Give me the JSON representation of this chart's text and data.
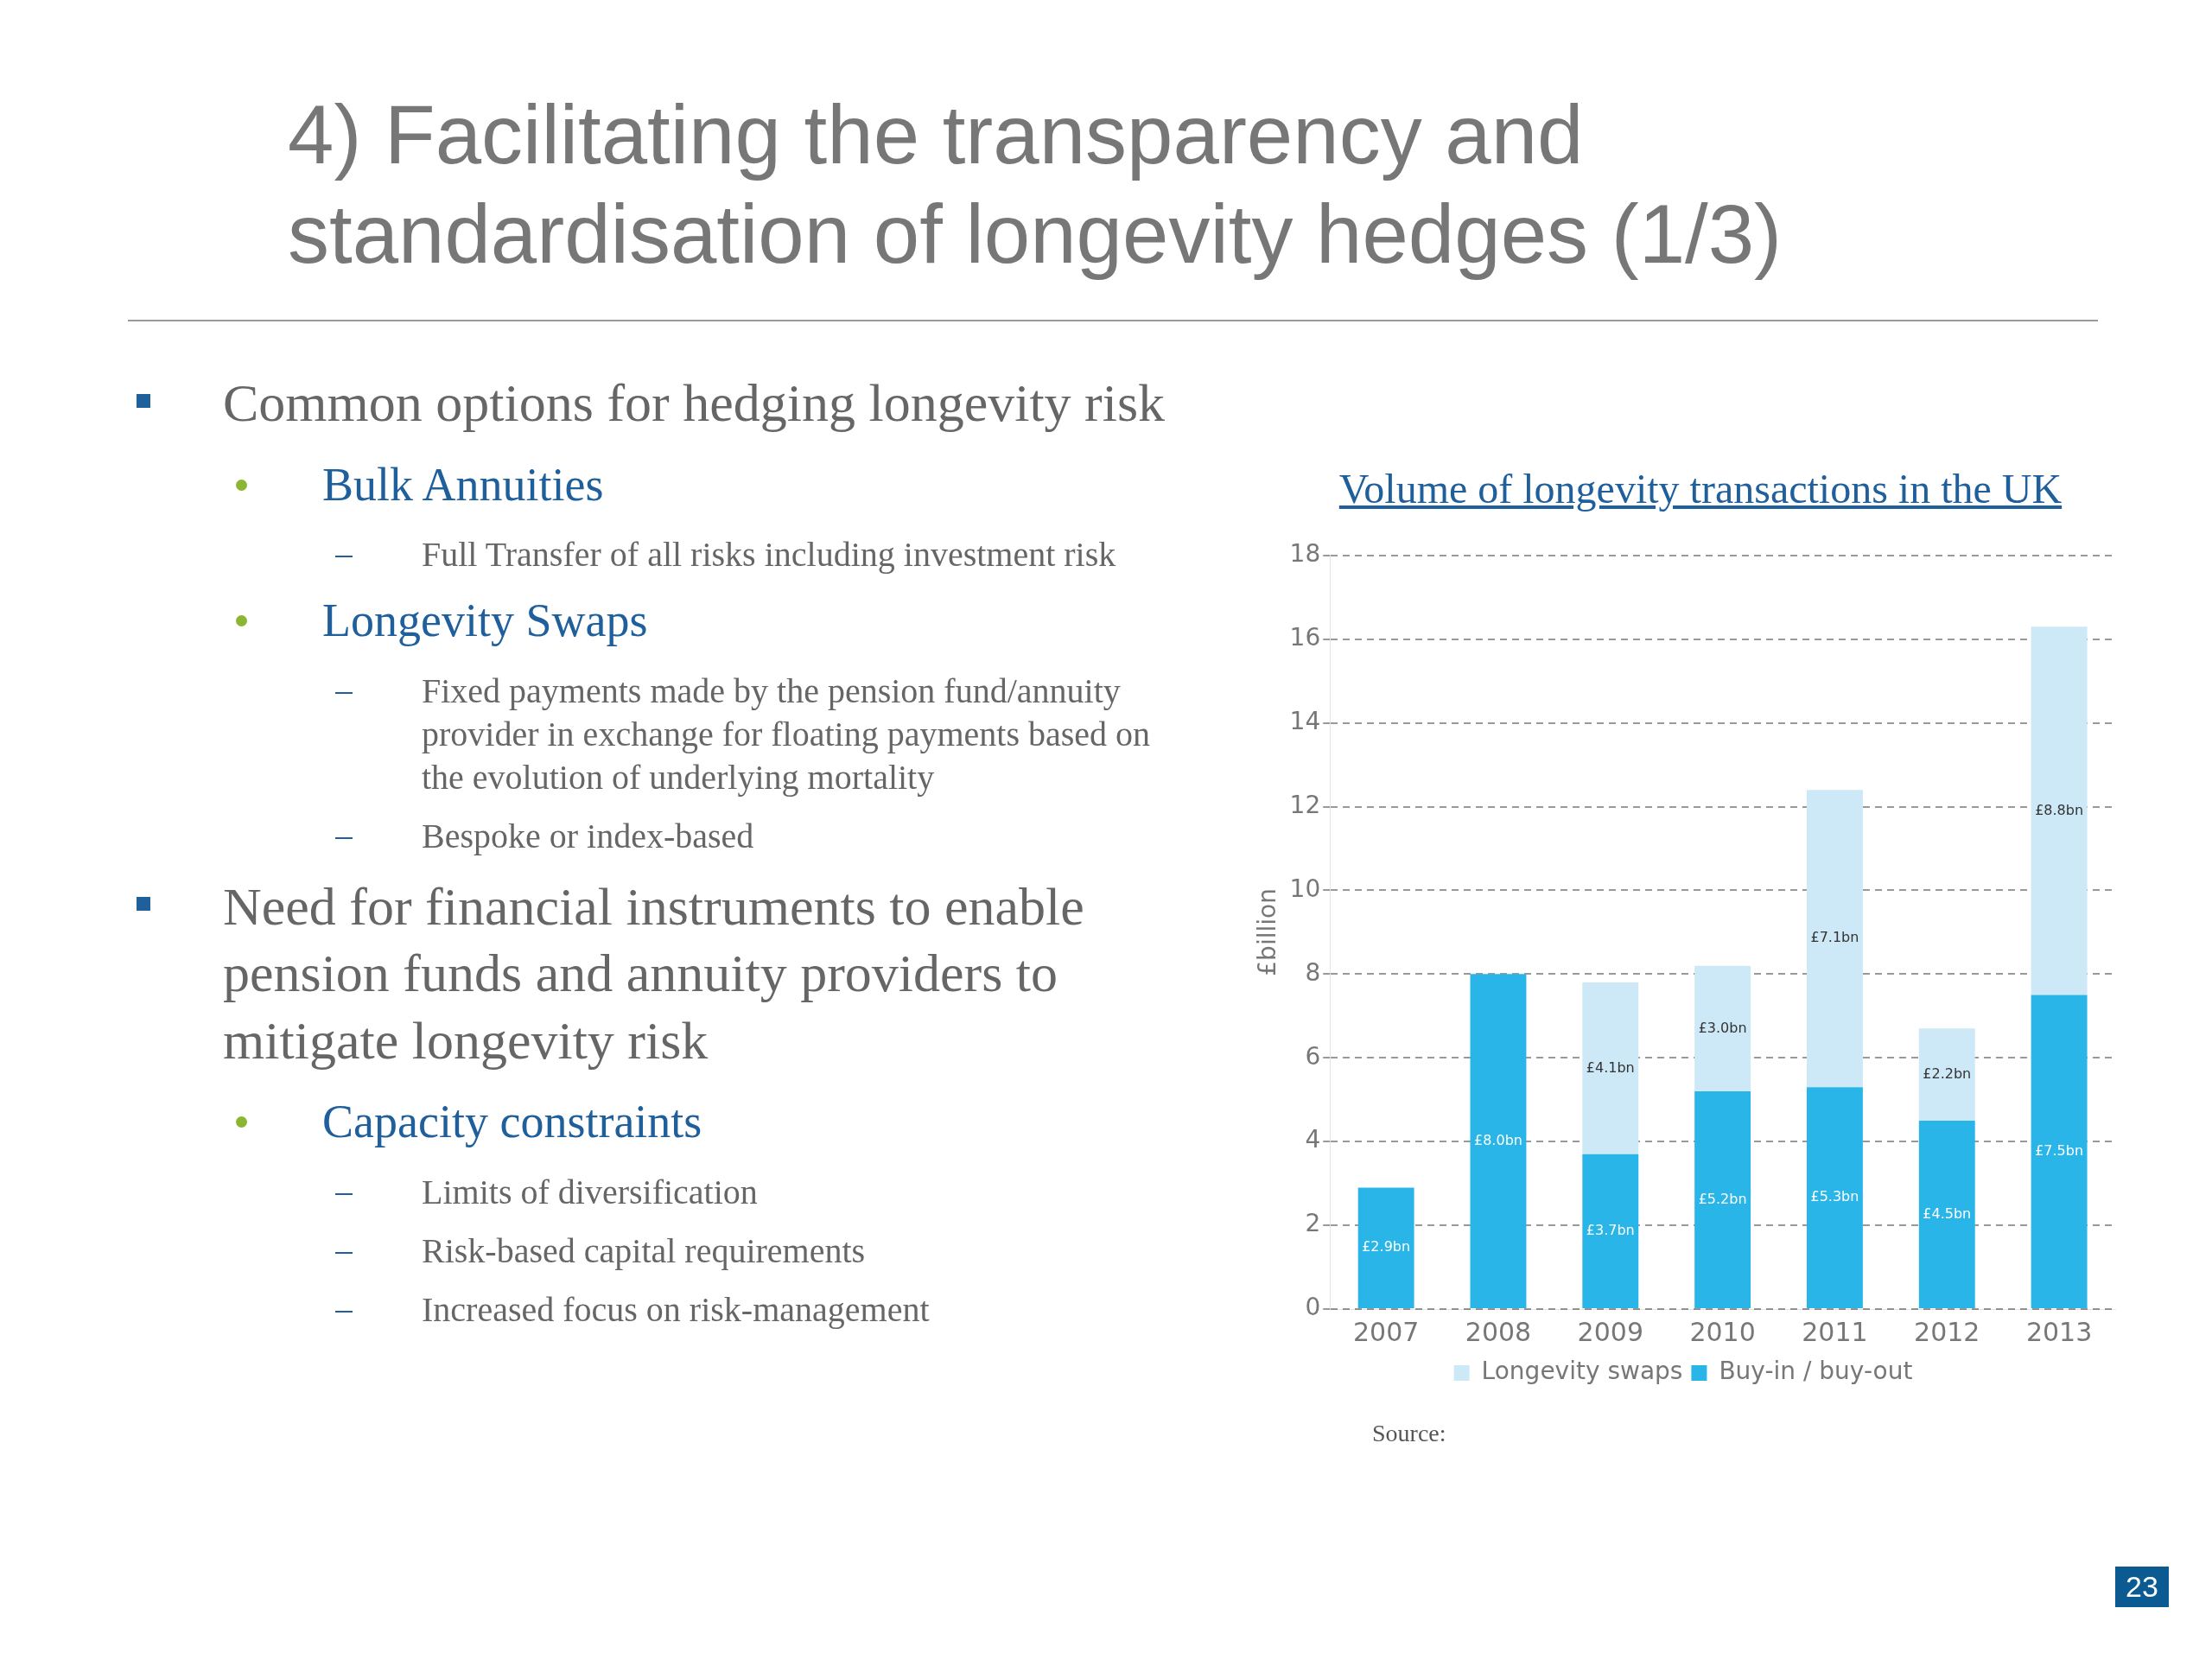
{
  "chart_data": {
    "type": "bar",
    "title": "4) Facilitating the transparency and standardisation of longevity hedges (1/3)",
    "subtitle": "Volume of longevity transactions in the UK",
    "ylabel": "£billion",
    "categories": [
      "2007",
      "2008",
      "2009",
      "2010",
      "2011",
      "2012",
      "2013"
    ],
    "stacked": true,
    "series": [
      {
        "name": "Buy-in / buy-out",
        "color": "#29b5e8",
        "values": [
          2.9,
          8.0,
          3.7,
          5.2,
          5.3,
          4.5,
          7.5
        ],
        "value_labels": [
          "£2.9bn",
          "£8.0bn",
          "£3.7bn",
          "£5.2bn",
          "£5.3bn",
          "£4.5bn",
          "£7.5bn"
        ]
      },
      {
        "name": "Longevity swaps",
        "color": "#cde8f7",
        "values": [
          null,
          null,
          4.1,
          3.0,
          7.1,
          2.2,
          8.8
        ],
        "value_labels": [
          null,
          null,
          "£4.1bn",
          "£3.0bn",
          "£7.1bn",
          "£2.2bn",
          "£8.8bn"
        ]
      }
    ],
    "ylim": [
      0,
      18
    ],
    "yticks": [
      0,
      2,
      4,
      6,
      8,
      10,
      12,
      14,
      16,
      18
    ],
    "grid": "y",
    "line_style": "dashed",
    "legend": "bottom",
    "annotations": [
      "Common options for hedging longevity risk",
      "Bulk Annuities",
      "Full Transfer of all risks including investment risk",
      "Longevity Swaps",
      "Fixed payments made by the pension fund/annuity provider in exchange for floating payments based on the evolution of underlying mortality",
      "Bespoke or index-based",
      "Need for financial instruments to enable pension funds and annuity providers to mitigate longevity risk",
      "Capacity constraints",
      "Limits of diversification",
      "Risk-based capital requirements",
      "Increased focus on risk-management",
      "Source:",
      "23"
    ]
  }
}
